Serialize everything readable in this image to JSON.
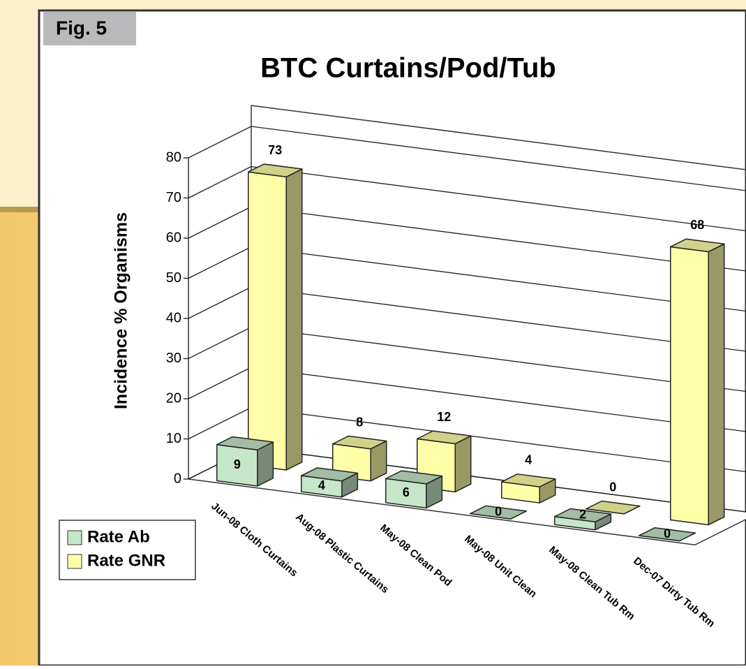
{
  "chart_data": {
    "type": "bar3d",
    "title": "BTC Curtains/Pod/Tub",
    "annotation": "Fig. 5",
    "ylabel": "Incidence % Organisms",
    "categories": [
      "Jun-08 Cloth Curtains",
      "Aug-08 Plastic Curtains",
      "May-08 Clean Pod",
      "May-08 Unit Clean",
      "May-08 Clean Tub Rm",
      "Dec-07 Dirty Tub Rm"
    ],
    "series": [
      {
        "name": "Rate Ab",
        "color": "#c6e6c8",
        "values": [
          9,
          4,
          6,
          0,
          2,
          0
        ]
      },
      {
        "name": "Rate GNR",
        "color": "#ffffa8",
        "values": [
          73,
          8,
          12,
          4,
          0,
          68
        ]
      }
    ],
    "ylim": [
      0,
      80
    ],
    "yticks": [
      0,
      10,
      20,
      30,
      40,
      50,
      60,
      70,
      80
    ],
    "grid": true,
    "legend": "lower left"
  }
}
